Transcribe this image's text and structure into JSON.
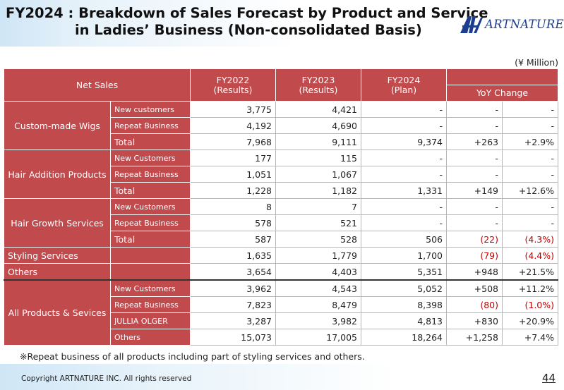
{
  "title": {
    "line1": "FY2024 : Breakdown of Sales Forecast by Product and Service",
    "line2": "in Ladies’ Business (Non-consolidated Basis)"
  },
  "logo": {
    "wordmark": "ARTNATURE"
  },
  "unit": "(¥ Million)",
  "table": {
    "headers": {
      "net_sales": "Net Sales",
      "fy2022": "FY2022\n(Results)",
      "fy2023": "FY2023\n(Results)",
      "fy2024": "FY2024\n(Plan)",
      "yoy": "YoY Change"
    },
    "rows": [
      {
        "cat": "Custom-made Wigs",
        "sub": "New customers",
        "fy2022": "3,775",
        "fy2023": "4,421",
        "fy2024": "-",
        "yoy_abs": "-",
        "yoy_pct": "-"
      },
      {
        "cat": "",
        "sub": "Repeat Business",
        "fy2022": "4,192",
        "fy2023": "4,690",
        "fy2024": "-",
        "yoy_abs": "-",
        "yoy_pct": "-"
      },
      {
        "cat": "",
        "sub": "Total",
        "fy2022": "7,968",
        "fy2023": "9,111",
        "fy2024": "9,374",
        "yoy_abs": "+263",
        "yoy_pct": "+2.9%"
      },
      {
        "cat": "Hair Addition Products",
        "sub": "New Customers",
        "fy2022": "177",
        "fy2023": "115",
        "fy2024": "-",
        "yoy_abs": "-",
        "yoy_pct": "-"
      },
      {
        "cat": "",
        "sub": "Repeat Business",
        "fy2022": "1,051",
        "fy2023": "1,067",
        "fy2024": "-",
        "yoy_abs": "-",
        "yoy_pct": "-"
      },
      {
        "cat": "",
        "sub": "Total",
        "fy2022": "1,228",
        "fy2023": "1,182",
        "fy2024": "1,331",
        "yoy_abs": "+149",
        "yoy_pct": "+12.6%"
      },
      {
        "cat": "Hair Growth Services",
        "sub": "New Customers",
        "fy2022": "8",
        "fy2023": "7",
        "fy2024": "-",
        "yoy_abs": "-",
        "yoy_pct": "-"
      },
      {
        "cat": "",
        "sub": "Repeat Business",
        "fy2022": "578",
        "fy2023": "521",
        "fy2024": "-",
        "yoy_abs": "-",
        "yoy_pct": "-"
      },
      {
        "cat": "",
        "sub": "Total",
        "fy2022": "587",
        "fy2023": "528",
        "fy2024": "506",
        "yoy_abs": "(22)",
        "yoy_pct": "(4.3%)"
      },
      {
        "cat": "Styling Services",
        "sub": "",
        "fy2022": "1,635",
        "fy2023": "1,779",
        "fy2024": "1,700",
        "yoy_abs": "(79)",
        "yoy_pct": "(4.4%)"
      },
      {
        "cat": "Others",
        "sub": "",
        "fy2022": "3,654",
        "fy2023": "4,403",
        "fy2024": "5,351",
        "yoy_abs": "+948",
        "yoy_pct": "+21.5%"
      },
      {
        "cat": "All Products & Sevices",
        "sub": "New Customers",
        "fy2022": "3,962",
        "fy2023": "4,543",
        "fy2024": "5,052",
        "yoy_abs": "+508",
        "yoy_pct": "+11.2%"
      },
      {
        "cat": "",
        "sub": "Repeat Business",
        "fy2022": "7,823",
        "fy2023": "8,479",
        "fy2024": "8,398",
        "yoy_abs": "(80)",
        "yoy_pct": "(1.0%)"
      },
      {
        "cat": "",
        "sub": "JULLIA OLGER",
        "fy2022": "3,287",
        "fy2023": "3,982",
        "fy2024": "4,813",
        "yoy_abs": "+830",
        "yoy_pct": "+20.9%"
      },
      {
        "cat": "",
        "sub": "Others",
        "fy2022": "15,073",
        "fy2023": "17,005",
        "fy2024": "18,264",
        "yoy_abs": "+1,258",
        "yoy_pct": "+7.4%"
      }
    ]
  },
  "footnote": "※Repeat business of all products including part of styling services and others.",
  "footer": {
    "copyright": "Copyright ARTNATURE INC. All rights reserved",
    "page_number": "44"
  },
  "colors": {
    "header_red": "#c14a4d",
    "negative_red": "#c00000",
    "logo_blue": "#1d3e8f",
    "header_blue": "#cfe6f6"
  }
}
